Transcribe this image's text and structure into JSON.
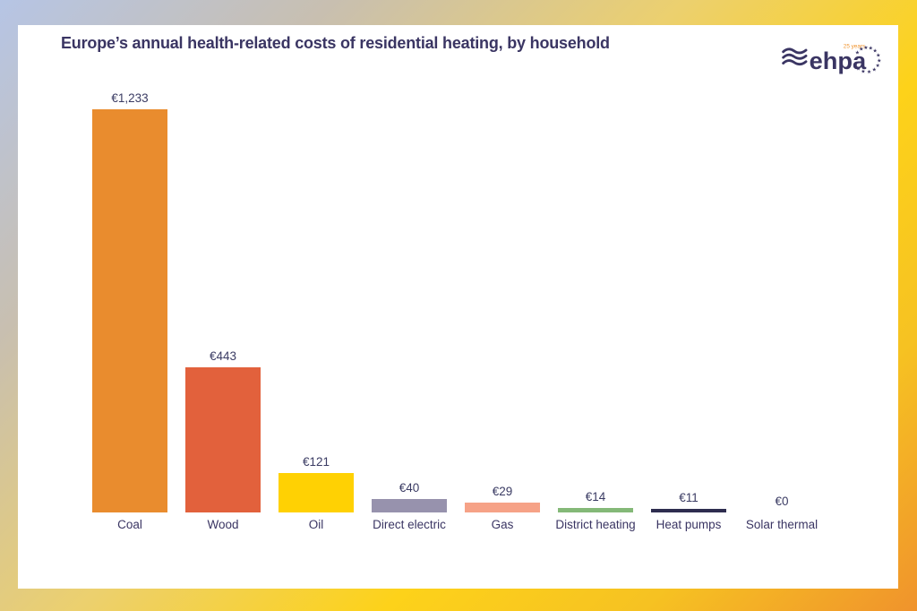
{
  "header": {
    "title": "Europe’s annual health-related costs of residential heating, by household"
  },
  "logo": {
    "brand": "ehpa",
    "badge": "25 years"
  },
  "colors": {
    "title_text": "#3a3563",
    "label_text": "#3a3b63",
    "logo_navy": "#3a3563",
    "logo_orange": "#f0932c",
    "card_background": "#ffffff",
    "frame_gradient": [
      "#b6c5e5",
      "#c8bfb0",
      "#ecd06e",
      "#fdd21a",
      "#f0932c"
    ]
  },
  "chart_data": {
    "type": "bar",
    "title": "Europe’s annual health-related costs of residential heating, by household",
    "categories": [
      "Coal",
      "Wood",
      "Oil",
      "Direct electric",
      "Gas",
      "District heating",
      "Heat pumps",
      "Solar thermal"
    ],
    "values": [
      1233,
      443,
      121,
      40,
      29,
      14,
      11,
      0
    ],
    "value_labels": [
      "€1,233",
      "€443",
      "€121",
      "€40",
      "€29",
      "€14",
      "€11",
      "€0"
    ],
    "bar_colors": [
      "#e98c2e",
      "#e2613c",
      "#ffd103",
      "#9792ad",
      "#f6a287",
      "#84b978",
      "#2e2d4f",
      "#ffffff"
    ],
    "currency": "EUR",
    "xlabel": "",
    "ylabel": "",
    "ylim": [
      0,
      1300
    ],
    "grid": false,
    "axes_visible": false,
    "legend": "none",
    "value_label_position": "above-bar"
  }
}
